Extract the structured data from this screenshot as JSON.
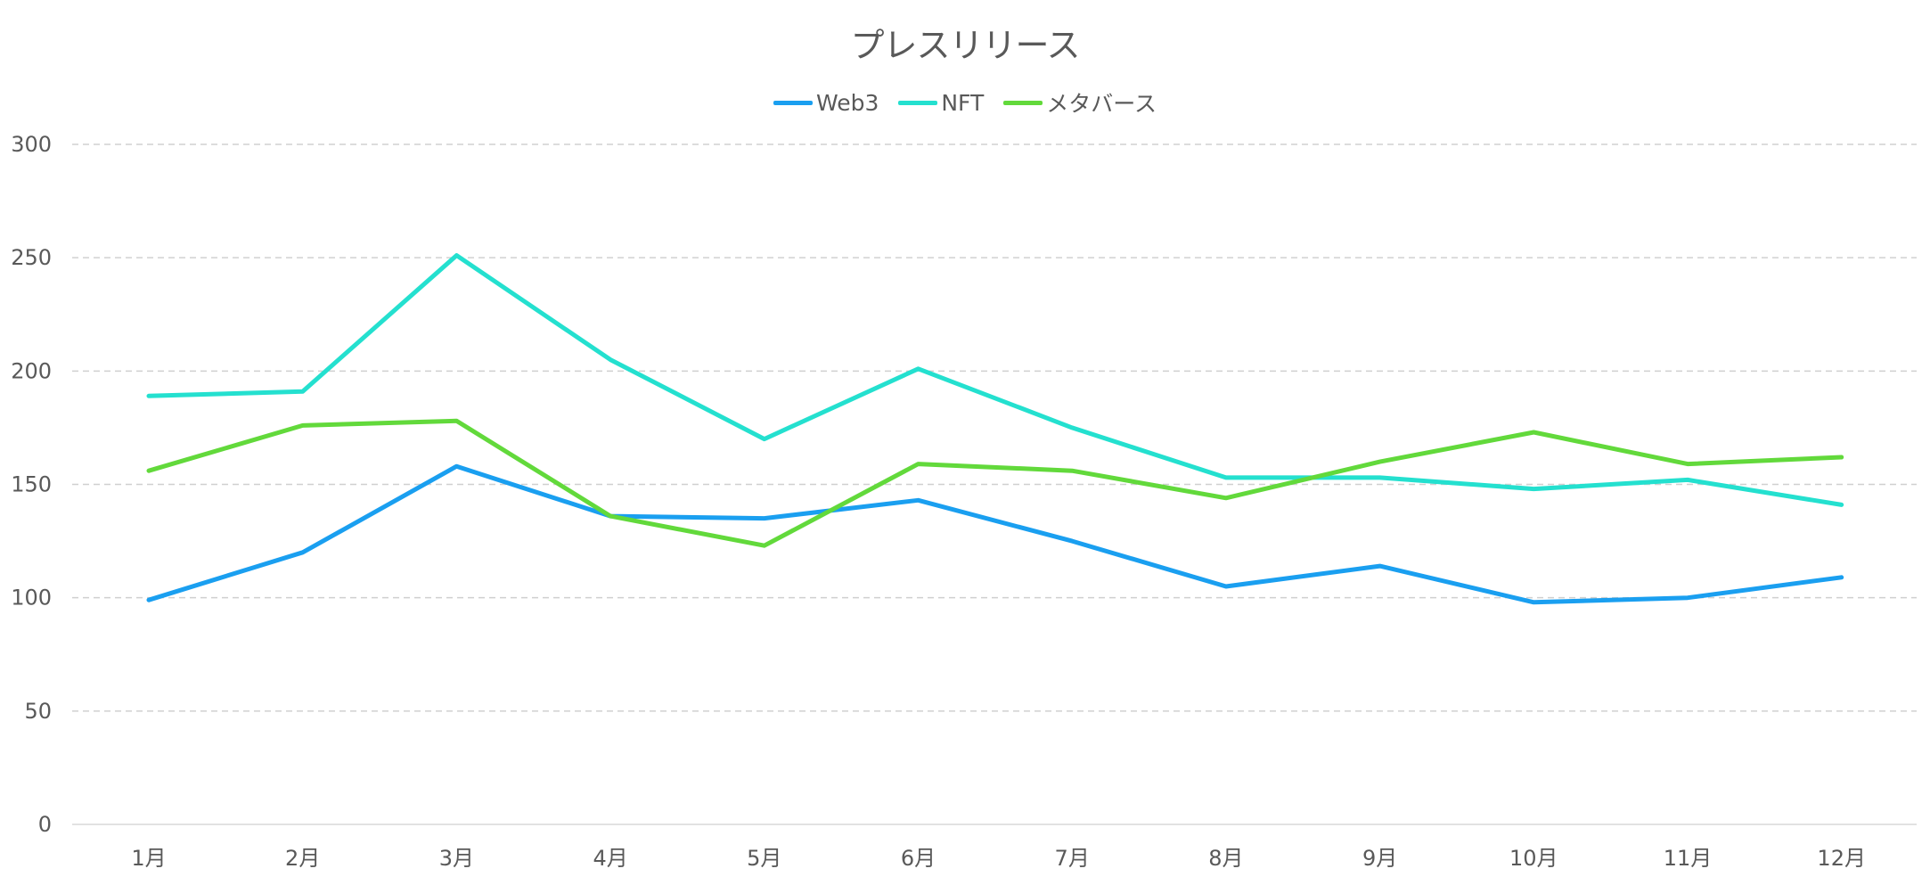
{
  "chart_data": {
    "type": "line",
    "title": "プレスリリース",
    "categories": [
      "1月",
      "2月",
      "3月",
      "4月",
      "5月",
      "6月",
      "7月",
      "8月",
      "9月",
      "10月",
      "11月",
      "12月"
    ],
    "series": [
      {
        "name": "Web3",
        "color": "#1a9ff0",
        "values": [
          99,
          120,
          158,
          136,
          135,
          143,
          125,
          105,
          114,
          98,
          100,
          109
        ]
      },
      {
        "name": "NFT",
        "color": "#24e0cf",
        "values": [
          189,
          191,
          251,
          205,
          170,
          201,
          175,
          153,
          153,
          148,
          152,
          141
        ]
      },
      {
        "name": "メタバース",
        "color": "#62d93b",
        "values": [
          156,
          176,
          178,
          136,
          123,
          159,
          156,
          144,
          160,
          173,
          159,
          162
        ]
      }
    ],
    "ylim": [
      0,
      300
    ],
    "yticks": [
      0,
      50,
      100,
      150,
      200,
      250,
      300
    ],
    "grid": true,
    "legend_position": "top"
  }
}
